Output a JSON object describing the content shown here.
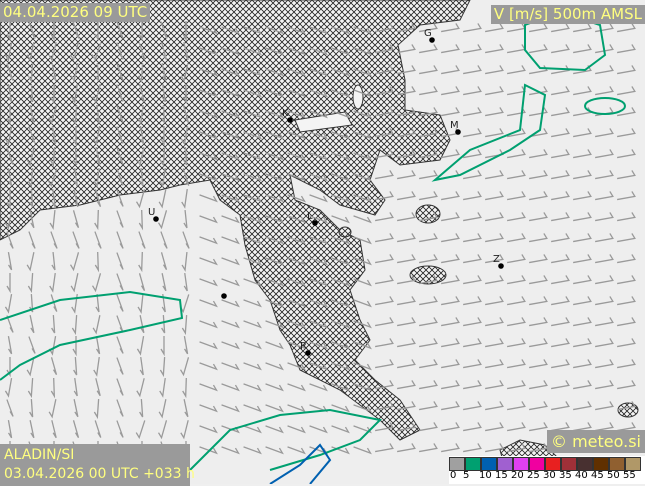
{
  "header": {
    "valid_time": "04.04.2026 09 UTC",
    "variable": "V [m/s] 500m AMSL"
  },
  "footer": {
    "model": "ALADIN/SI",
    "run": "03.04.2026 00 UTC +033 h",
    "copyright": "© meteo.si"
  },
  "legend": {
    "unit": "m/s",
    "ticks": [
      "0",
      "5",
      "10",
      "15",
      "20",
      "25",
      "30",
      "35",
      "40",
      "45",
      "50",
      "55"
    ],
    "colors": [
      "#a0a0a0",
      "#00a070",
      "#0060b0",
      "#a060d0",
      "#e040f0",
      "#f000a0",
      "#e82020",
      "#a03038",
      "#483030",
      "#603000",
      "#906030",
      "#b09868"
    ]
  },
  "cities": [
    {
      "label": "G"
    },
    {
      "label": "K"
    },
    {
      "label": "M"
    },
    {
      "label": "U"
    },
    {
      "label": "L"
    },
    {
      "label": "Z"
    },
    {
      "label": "R"
    },
    {
      "label": ""
    }
  ]
}
